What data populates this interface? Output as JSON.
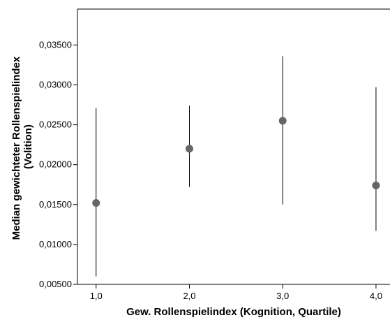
{
  "chart_data": {
    "type": "scatter",
    "subtype": "median-with-error-bars",
    "xlabel": "Gew. Rollenspielindex (Kognition, Quartile)",
    "ylabel_line1": "Median gewichteter Rollenspielindex",
    "ylabel_line2": "(Volition)",
    "x_ticks": [
      "1,0",
      "2,0",
      "3,0",
      "4,0"
    ],
    "y_ticks": [
      "0,00500",
      "0,01000",
      "0,01500",
      "0,02000",
      "0,02500",
      "0,03000",
      "0,03500"
    ],
    "xlim": [
      0.8,
      4.15
    ],
    "ylim": [
      0.005,
      0.0395
    ],
    "points": [
      {
        "x": 1.0,
        "median": 0.0152,
        "low": 0.006,
        "high": 0.0271
      },
      {
        "x": 2.0,
        "median": 0.022,
        "low": 0.0172,
        "high": 0.0274
      },
      {
        "x": 3.0,
        "median": 0.0255,
        "low": 0.015,
        "high": 0.0336
      },
      {
        "x": 4.0,
        "median": 0.0174,
        "low": 0.0117,
        "high": 0.0297
      }
    ],
    "marker_color": "#666666",
    "line_color": "#000000",
    "grid": false,
    "legend": "none"
  }
}
